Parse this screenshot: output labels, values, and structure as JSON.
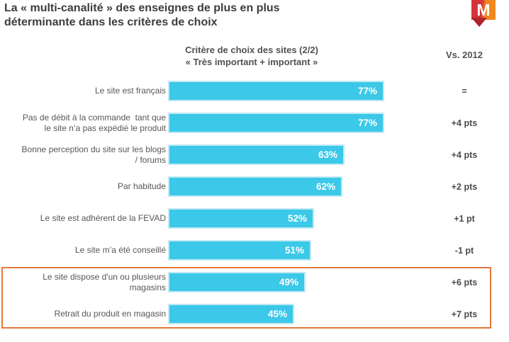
{
  "page": {
    "title": "La « multi-canalité » des enseignes de plus en plus\ndéterminante dans les critères de choix",
    "title_color": "#3d3d3d"
  },
  "logo": {
    "letter": "M",
    "red": "#d5323a",
    "orange": "#f0881f",
    "arrow_color": "#b0232d"
  },
  "chart_data": {
    "type": "bar",
    "orientation": "horizontal",
    "title": "Critère de choix des sites (2/2)\n« Très important + important »",
    "comparison_header": "Vs. 2012",
    "categories": [
      "Le site est français",
      "Pas de débit à la commande  tant que\nle site n’a pas expédié le produit",
      "Bonne perception du site sur les blogs\n/ forums",
      "Par habitude",
      "Le site est adhérent de la FEVAD",
      "Le site m’a été conseillé",
      "Le site dispose d'un ou plusieurs\nmagasins",
      "Retrait du produit en magasin"
    ],
    "values": [
      77,
      77,
      63,
      62,
      52,
      51,
      49,
      45
    ],
    "value_labels": [
      "77%",
      "77%",
      "63%",
      "62%",
      "52%",
      "51%",
      "49%",
      "45%"
    ],
    "vs_2012": [
      "=",
      "+4 pts",
      "+4 pts",
      "+2 pts",
      "+1 pt",
      "-1 pt",
      "+6 pts",
      "+7 pts"
    ],
    "xlim": [
      0,
      100
    ],
    "bar_color": "#3cc8e8",
    "bar_border_color": "#bfe9f4",
    "value_text_color": "#ffffff",
    "highlighted_rows": [
      6,
      7
    ],
    "highlight_box_color": "#e2793c",
    "grid": false,
    "legend": false
  }
}
